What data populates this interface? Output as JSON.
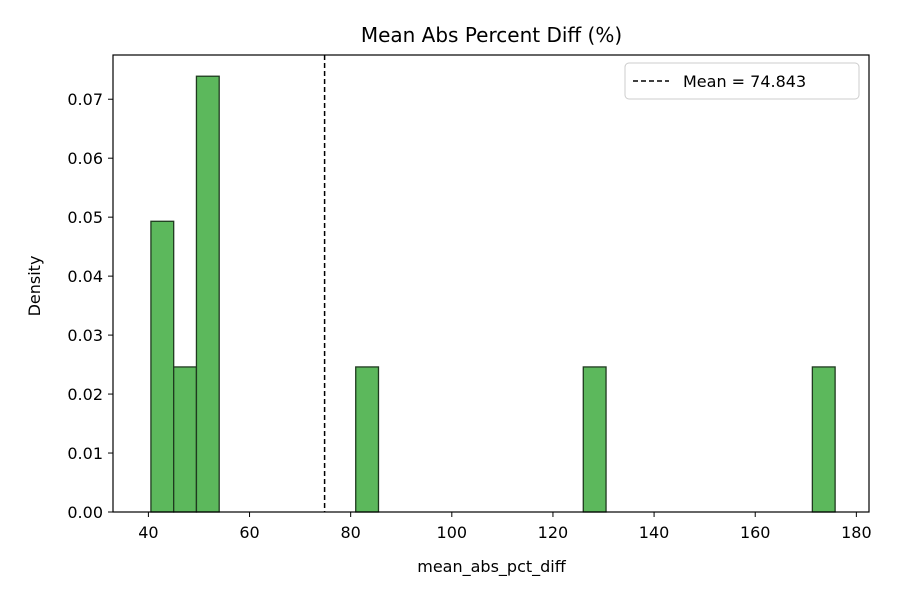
{
  "chart_data": {
    "type": "bar",
    "title": "Mean Abs Percent Diff (%)",
    "xlabel": "mean_abs_pct_diff",
    "ylabel": "Density",
    "xlim": [
      33.0,
      182.5
    ],
    "ylim": [
      0,
      0.0775
    ],
    "xticks": [
      40,
      60,
      80,
      100,
      120,
      140,
      160,
      180
    ],
    "yticks": [
      0.0,
      0.01,
      0.02,
      0.03,
      0.04,
      0.05,
      0.06,
      0.07
    ],
    "bins": [
      {
        "x0": 40.5,
        "x1": 45.0,
        "density": 0.0493
      },
      {
        "x0": 45.0,
        "x1": 49.5,
        "density": 0.0246
      },
      {
        "x0": 49.5,
        "x1": 54.0,
        "density": 0.0739
      },
      {
        "x0": 81.0,
        "x1": 85.5,
        "density": 0.0246
      },
      {
        "x0": 126.0,
        "x1": 130.5,
        "density": 0.0246
      },
      {
        "x0": 171.3,
        "x1": 175.8,
        "density": 0.0246
      }
    ],
    "mean": 74.843,
    "legend": {
      "label": "Mean = 74.843",
      "position": "top-right"
    },
    "grid": false,
    "colors": {
      "bar_fill": "#5cb85c",
      "bar_edge": "#1f3a1f",
      "mean_line": "#000000"
    }
  }
}
